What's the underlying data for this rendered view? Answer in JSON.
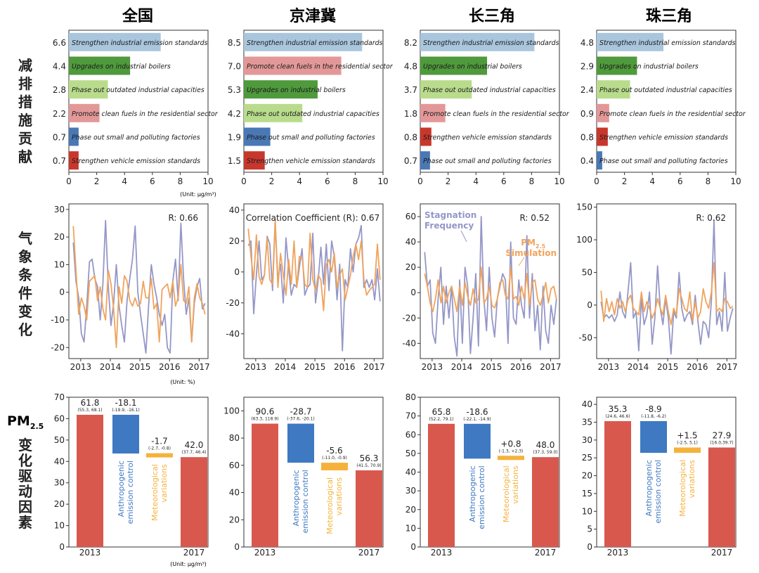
{
  "region_titles": [
    "全国",
    "京津冀",
    "长三角",
    "珠三角"
  ],
  "row_labels": {
    "row1": "减排措施贡献",
    "row2": "气象条件变化",
    "row3_line1": "PM",
    "row3_sub": "2.5",
    "row3_line2": "变化驱动因素"
  },
  "units": {
    "row1": "(Unit: μg/m³)",
    "row2": "(Unit: %)",
    "row3": "(Unit: μg/m³)"
  },
  "colors": {
    "Strengthen industrial emission standards": "#a9c6dd",
    "Upgrades on industrial boilers": "#4f9a3c",
    "Phase out outdated industrial capacities": "#b9dc8c",
    "Promote clean fuels in the residential sector": "#e39898",
    "Phase out small and polluting factories": "#4a78b4",
    "Strengthen vehicle emission standards": "#c8372c",
    "stagnation": "#9497c7",
    "pm": "#f0a35c",
    "bar_year": "#d9584d",
    "bar_anthro": "#3e79c2",
    "bar_meteo": "#f5b23b"
  },
  "chart_data": [
    {
      "type": "bar",
      "orientation": "horizontal",
      "region": "全国",
      "xlim": [
        0,
        10
      ],
      "xticks": [
        "0",
        "2",
        "4",
        "6",
        "8",
        "10"
      ],
      "categories": [
        "Strengthen industrial emission standards",
        "Upgrades on industrial boilers",
        "Phase out outdated industrial capacities",
        "Promote clean fuels in the residential sector",
        "Phase out small and polluting factories",
        "Strengthen vehicle emission standards"
      ],
      "values": [
        6.6,
        4.4,
        2.8,
        2.2,
        0.7,
        0.7
      ],
      "value_labels": [
        "6.6",
        "4.4",
        "2.8",
        "2.2",
        "0.7",
        "0.7"
      ]
    },
    {
      "type": "bar",
      "orientation": "horizontal",
      "region": "京津冀",
      "xlim": [
        0,
        10
      ],
      "xticks": [
        "0",
        "2",
        "4",
        "6",
        "8",
        "10"
      ],
      "categories": [
        "Strengthen industrial emission standards",
        "Promote clean fuels in the residential sector",
        "Upgrades on industrial boilers",
        "Phase out outdated industrial capacities",
        "Phase out small and polluting factories",
        "Strengthen vehicle emission standards"
      ],
      "values": [
        8.5,
        7.0,
        5.3,
        4.2,
        1.9,
        1.5
      ],
      "value_labels": [
        "8.5",
        "7.0",
        "5.3",
        "4.2",
        "1.9",
        "1.5"
      ]
    },
    {
      "type": "bar",
      "orientation": "horizontal",
      "region": "长三角",
      "xlim": [
        0,
        10
      ],
      "xticks": [
        "0",
        "2",
        "4",
        "6",
        "8",
        "10"
      ],
      "categories": [
        "Strengthen industrial emission standards",
        "Upgrades on industrial boilers",
        "Phase out outdated industrial capacities",
        "Promote clean fuels in the residential sector",
        "Strengthen vehicle emission standards",
        "Phase out small and polluting factories"
      ],
      "values": [
        8.2,
        4.8,
        3.7,
        1.8,
        0.8,
        0.7
      ],
      "value_labels": [
        "8.2",
        "4.8",
        "3.7",
        "1.8",
        "0.8",
        "0.7"
      ]
    },
    {
      "type": "bar",
      "orientation": "horizontal",
      "region": "珠三角",
      "xlim": [
        0,
        10
      ],
      "xticks": [
        "0",
        "2",
        "4",
        "6",
        "8",
        "10"
      ],
      "categories": [
        "Strengthen industrial emission standards",
        "Upgrades on industrial boilers",
        "Phase out outdated industrial capacities",
        "Promote clean fuels in the residential sector",
        "Strengthen vehicle emission standards",
        "Phase out small and polluting factories"
      ],
      "values": [
        4.8,
        2.9,
        2.4,
        0.9,
        0.8,
        0.4
      ],
      "value_labels": [
        "4.8",
        "2.9",
        "2.4",
        "0.9",
        "0.8",
        "0.4"
      ]
    },
    {
      "type": "line",
      "region": "全国",
      "annotation": "R: 0.66",
      "xlim": [
        2012.6,
        2017.3
      ],
      "ylim": [
        -24,
        32
      ],
      "xticks": [
        "2013",
        "2014",
        "2015",
        "2016",
        "2017"
      ],
      "yticks": [
        "30",
        "20",
        "10",
        "0",
        "-10",
        "-20"
      ],
      "series": [
        {
          "key": "stagnation",
          "values": [
            18,
            4,
            -2,
            -15,
            -18,
            -5,
            11,
            12,
            5,
            2,
            -10,
            3,
            26,
            2,
            -12,
            -4,
            10,
            -5,
            -12,
            -18,
            -3,
            5,
            12,
            24,
            0,
            -8,
            -15,
            -22,
            -5,
            10,
            3,
            -2,
            -8,
            -12,
            -8,
            -20,
            -22,
            4,
            12,
            -3,
            25,
            5,
            -8,
            -2,
            -18,
            -4,
            2,
            5,
            -6,
            -4
          ]
        },
        {
          "key": "pm",
          "values": [
            24,
            8,
            -8,
            -2,
            -5,
            -10,
            4,
            5,
            6,
            -3,
            2,
            -6,
            -10,
            8,
            3,
            -6,
            -20,
            2,
            -4,
            6,
            4,
            -3,
            -5,
            -2,
            -5,
            -4,
            4,
            -2,
            -2,
            5,
            -6,
            -4,
            -18,
            1,
            2,
            3,
            -2,
            4,
            -5,
            -2,
            10,
            -3,
            -4,
            2,
            -18,
            -2,
            3,
            -2,
            -4,
            -8
          ]
        }
      ]
    },
    {
      "type": "line",
      "region": "京津冀",
      "annotation": "Correlation Coefficient (R): 0.67",
      "xlim": [
        2012.6,
        2017.3
      ],
      "ylim": [
        -56,
        44
      ],
      "xticks": [
        "2013",
        "2014",
        "2015",
        "2016",
        "2017"
      ],
      "yticks": [
        "40",
        "20",
        "0",
        "-20",
        "-40"
      ],
      "series": [
        {
          "key": "stagnation",
          "values": [
            17,
            20,
            -27,
            -2,
            20,
            -5,
            -2,
            23,
            18,
            -12,
            32,
            -5,
            5,
            -20,
            22,
            2,
            -15,
            -8,
            -10,
            3,
            15,
            -15,
            -10,
            -8,
            25,
            -20,
            -5,
            16,
            -8,
            18,
            -12,
            20,
            10,
            -18,
            5,
            -51,
            -5,
            -10,
            15,
            0,
            18,
            22,
            30,
            -10,
            -5,
            -10,
            -5,
            -18,
            2,
            -19
          ]
        },
        {
          "key": "pm",
          "values": [
            28,
            10,
            -5,
            24,
            -3,
            -8,
            -2,
            22,
            -5,
            -8,
            34,
            -10,
            12,
            -2,
            -15,
            8,
            -8,
            20,
            -10,
            10,
            10,
            -8,
            -10,
            25,
            -5,
            -12,
            -2,
            -5,
            -25,
            5,
            8,
            0,
            12,
            -10,
            -2,
            2,
            -18,
            -10,
            -2,
            10,
            18,
            8,
            20,
            -5,
            -15,
            -12,
            -10,
            -8,
            18,
            -5
          ]
        }
      ]
    },
    {
      "type": "line",
      "region": "长三角",
      "annotation": "R: 0.52",
      "series_labels": [
        "Stagnation",
        "Frequency",
        "PM",
        "2.5",
        "Simulation"
      ],
      "xlim": [
        2012.6,
        2017.3
      ],
      "ylim": [
        -52,
        70
      ],
      "xticks": [
        "2013",
        "2014",
        "2015",
        "2016",
        "2017"
      ],
      "yticks": [
        "60",
        "40",
        "20",
        "0",
        "-20",
        "-40"
      ],
      "series": [
        {
          "key": "stagnation",
          "values": [
            32,
            5,
            10,
            -32,
            -40,
            -5,
            20,
            -25,
            5,
            -20,
            5,
            -35,
            -50,
            10,
            -40,
            20,
            5,
            -48,
            -20,
            15,
            -42,
            60,
            -5,
            -30,
            20,
            -20,
            -35,
            -5,
            5,
            15,
            10,
            -40,
            40,
            -20,
            -25,
            10,
            -10,
            -20,
            45,
            -20,
            15,
            -30,
            -10,
            -45,
            5,
            -30,
            -40,
            -10,
            -25,
            -5
          ]
        },
        {
          "key": "pm",
          "values": [
            15,
            5,
            -8,
            -15,
            -5,
            10,
            -8,
            5,
            -8,
            0,
            5,
            -5,
            -15,
            5,
            -10,
            8,
            -3,
            -10,
            3,
            -8,
            -5,
            20,
            -8,
            -5,
            5,
            -10,
            -12,
            -5,
            8,
            10,
            -2,
            -5,
            20,
            -5,
            -3,
            -10,
            5,
            -5,
            15,
            -10,
            8,
            10,
            -5,
            -10,
            -2,
            8,
            -8,
            3,
            5,
            -5
          ]
        }
      ]
    },
    {
      "type": "line",
      "region": "珠三角",
      "annotation": "R: 0.62",
      "xlim": [
        2012.6,
        2017.3
      ],
      "ylim": [
        -82,
        155
      ],
      "xticks": [
        "2013",
        "2014",
        "2015",
        "2016",
        "2017"
      ],
      "yticks": [
        "150",
        "100",
        "50",
        "0",
        "-50"
      ],
      "series": [
        {
          "key": "stagnation",
          "values": [
            5,
            -20,
            -15,
            -20,
            -15,
            -25,
            -15,
            20,
            -10,
            -20,
            20,
            65,
            -20,
            -10,
            -70,
            10,
            -30,
            -15,
            20,
            -60,
            -20,
            60,
            -5,
            -30,
            10,
            -20,
            -75,
            -10,
            -20,
            50,
            -5,
            -25,
            -15,
            -10,
            -30,
            15,
            -25,
            -60,
            -25,
            -30,
            -50,
            5,
            130,
            -30,
            -10,
            -40,
            50,
            -40,
            -20,
            -5
          ]
        },
        {
          "key": "pm",
          "values": [
            22,
            -25,
            10,
            -10,
            5,
            -15,
            10,
            -5,
            5,
            -10,
            8,
            15,
            -5,
            -10,
            -15,
            20,
            -10,
            5,
            -5,
            -20,
            -10,
            10,
            -5,
            -15,
            15,
            -10,
            -30,
            -5,
            -15,
            25,
            10,
            -5,
            -10,
            20,
            -25,
            5,
            -20,
            -10,
            25,
            5,
            -5,
            20,
            65,
            -10,
            -5,
            -10,
            10,
            5,
            -5,
            -2
          ]
        }
      ]
    },
    {
      "type": "bar",
      "subtype": "waterfall",
      "region": "全国",
      "ylim": [
        0,
        70
      ],
      "yticks": [
        "70",
        "60",
        "50",
        "40",
        "30",
        "20",
        "10",
        "0"
      ],
      "categories": [
        "2013",
        "Anthropogenic emission control",
        "Meteorological variations",
        "2017"
      ],
      "category_labels": [
        "2013",
        "Anthropogenic\nemission control",
        "Meteorological\nvariations",
        "2017"
      ],
      "values": [
        61.8,
        -18.1,
        -1.7,
        42.0
      ],
      "value_labels": [
        "61.8",
        "-18.1",
        "-1.7",
        "42.0"
      ],
      "ranges": [
        "(55.3, 68.1)",
        "(-19.9, -16.1)",
        "(-2.7, -0.8)",
        "(37.7, 46.4)"
      ]
    },
    {
      "type": "bar",
      "subtype": "waterfall",
      "region": "京津冀",
      "ylim": [
        0,
        110
      ],
      "yticks": [
        "100",
        "80",
        "60",
        "40",
        "20",
        "0"
      ],
      "categories": [
        "2013",
        "Anthropogenic emission control",
        "Meteorological variations",
        "2017"
      ],
      "category_labels": [
        "2013",
        "Anthropogenic\nemission control",
        "Meteorological\nvariations",
        "2017"
      ],
      "values": [
        90.6,
        -28.7,
        -5.6,
        56.3
      ],
      "value_labels": [
        "90.6",
        "-28.7",
        "-5.6",
        "56.3"
      ],
      "ranges": [
        "(63.3, 118.9)",
        "(-37.6, -20.1)",
        "(-11.0, -0.9)",
        "(41.5, 70.9)"
      ]
    },
    {
      "type": "bar",
      "subtype": "waterfall",
      "region": "长三角",
      "ylim": [
        0,
        80
      ],
      "yticks": [
        "80",
        "70",
        "60",
        "50",
        "40",
        "30",
        "20",
        "10",
        "0"
      ],
      "categories": [
        "2013",
        "Anthropogenic emission control",
        "Meteorological variations",
        "2017"
      ],
      "category_labels": [
        "2013",
        "Anthropogenic\nemission control",
        "Meteorological\nvariations",
        "2017"
      ],
      "values": [
        65.8,
        -18.6,
        0.8,
        48.0
      ],
      "value_labels": [
        "65.8",
        "-18.6",
        "+0.8",
        "48.0"
      ],
      "ranges": [
        "(52.2, 79.1)",
        "(-22.1, -14.9)",
        "(-1.3, +2.3)",
        "(37.3, 59.0)"
      ]
    },
    {
      "type": "bar",
      "subtype": "waterfall",
      "region": "珠三角",
      "ylim": [
        0,
        42
      ],
      "yticks": [
        "40",
        "35",
        "30",
        "25",
        "20",
        "15",
        "10",
        "5",
        "0"
      ],
      "categories": [
        "2013",
        "Anthropogenic emission control",
        "Meteorological variations",
        "2017"
      ],
      "category_labels": [
        "2013",
        "Anthropogenic\nemission control",
        "Meteorological\nvariations",
        "2017"
      ],
      "values": [
        35.3,
        -8.9,
        1.5,
        27.9
      ],
      "value_labels": [
        "35.3",
        "-8.9",
        "+1.5",
        "27.9"
      ],
      "ranges": [
        "(24.6, 46.6)",
        "(-11.8, -6.2)",
        "(-2.5, 5.1)",
        "(16.0,39.7)"
      ]
    }
  ]
}
